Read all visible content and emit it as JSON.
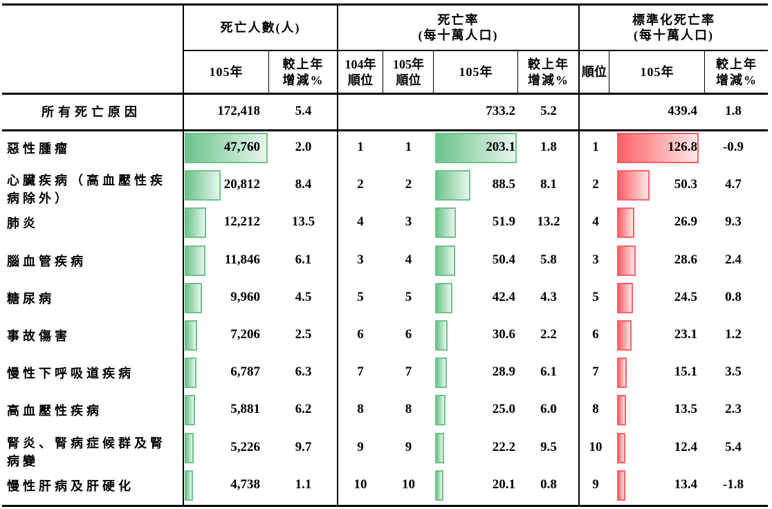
{
  "headers": {
    "deaths_group": "死亡人數(人)",
    "rate_group": "死亡率\n(每十萬人口)",
    "std_group": "標準化死亡率\n(每十萬人口)",
    "deaths_105": "105年",
    "deaths_change": "較上年\n增減%",
    "rank_104": "104年\n順位",
    "rank_105": "105年\n順位",
    "rate_105": "105年",
    "rate_change": "較上年\n增減%",
    "std_rank": "順位",
    "std_105": "105年",
    "std_change": "較上年\n增減%"
  },
  "total": {
    "label": "所有死亡原因",
    "deaths": "172,418",
    "deaths_change": "5.4",
    "rate": "733.2",
    "rate_change": "5.2",
    "std_rate": "439.4",
    "std_change": "1.8"
  },
  "rows": [
    {
      "label": "惡性腫瘤",
      "deaths": "47,760",
      "deaths_change": "2.0",
      "rank_104": "1",
      "rank_105": "1",
      "rate": "203.1",
      "rate_change": "1.8",
      "std_rank": "1",
      "std_rate": "126.8",
      "std_change": "-0.9"
    },
    {
      "label": "心臟疾病（高血壓性疾病除外）",
      "deaths": "20,812",
      "deaths_change": "8.4",
      "rank_104": "2",
      "rank_105": "2",
      "rate": "88.5",
      "rate_change": "8.1",
      "std_rank": "2",
      "std_rate": "50.3",
      "std_change": "4.7"
    },
    {
      "label": "肺炎",
      "deaths": "12,212",
      "deaths_change": "13.5",
      "rank_104": "4",
      "rank_105": "3",
      "rate": "51.9",
      "rate_change": "13.2",
      "std_rank": "4",
      "std_rate": "26.9",
      "std_change": "9.3"
    },
    {
      "label": "腦血管疾病",
      "deaths": "11,846",
      "deaths_change": "6.1",
      "rank_104": "3",
      "rank_105": "4",
      "rate": "50.4",
      "rate_change": "5.8",
      "std_rank": "3",
      "std_rate": "28.6",
      "std_change": "2.4"
    },
    {
      "label": "糖尿病",
      "deaths": "9,960",
      "deaths_change": "4.5",
      "rank_104": "5",
      "rank_105": "5",
      "rate": "42.4",
      "rate_change": "4.3",
      "std_rank": "5",
      "std_rate": "24.5",
      "std_change": "0.8"
    },
    {
      "label": "事故傷害",
      "deaths": "7,206",
      "deaths_change": "2.5",
      "rank_104": "6",
      "rank_105": "6",
      "rate": "30.6",
      "rate_change": "2.2",
      "std_rank": "6",
      "std_rate": "23.1",
      "std_change": "1.2"
    },
    {
      "label": "慢性下呼吸道疾病",
      "deaths": "6,787",
      "deaths_change": "6.3",
      "rank_104": "7",
      "rank_105": "7",
      "rate": "28.9",
      "rate_change": "6.1",
      "std_rank": "7",
      "std_rate": "15.1",
      "std_change": "3.5"
    },
    {
      "label": "高血壓性疾病",
      "deaths": "5,881",
      "deaths_change": "6.2",
      "rank_104": "8",
      "rank_105": "8",
      "rate": "25.0",
      "rate_change": "6.0",
      "std_rank": "8",
      "std_rate": "13.5",
      "std_change": "2.3"
    },
    {
      "label": "腎炎、腎病症候群及腎病變",
      "deaths": "5,226",
      "deaths_change": "9.7",
      "rank_104": "9",
      "rank_105": "9",
      "rate": "22.2",
      "rate_change": "9.5",
      "std_rank": "10",
      "std_rate": "12.4",
      "std_change": "5.4"
    },
    {
      "label": "慢性肝病及肝硬化",
      "deaths": "4,738",
      "deaths_change": "1.1",
      "rank_104": "10",
      "rank_105": "10",
      "rate": "20.1",
      "rate_change": "0.8",
      "std_rank": "9",
      "std_rate": "13.4",
      "std_change": "-1.8"
    }
  ],
  "colors": {
    "green_bar": "#6cc38a",
    "red_bar": "#ff6168"
  }
}
